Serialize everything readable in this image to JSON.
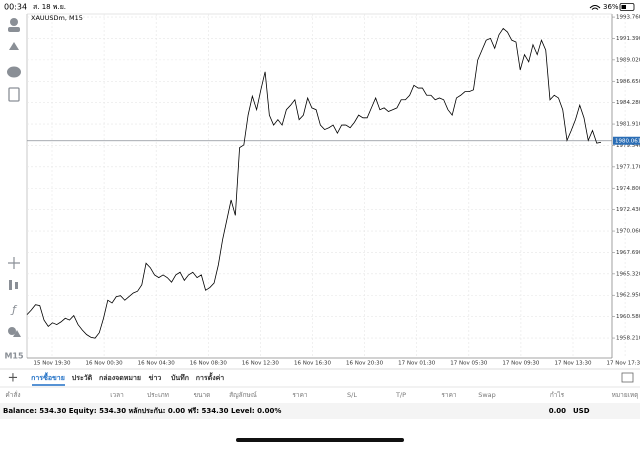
{
  "status_bar": {
    "time": "00:34",
    "date": "ส. 18 พ.ย.",
    "battery": "36%"
  },
  "sidebar": {
    "timeframe": "M15"
  },
  "chart_data": {
    "type": "line",
    "title": "XAUUSDm, M15",
    "color": "#000000",
    "grid": true,
    "values": [
      1960.8,
      1961.3,
      1961.9,
      1961.8,
      1960.2,
      1959.5,
      1959.9,
      1959.7,
      1960.0,
      1960.4,
      1960.2,
      1960.7,
      1959.7,
      1959.1,
      1958.6,
      1958.3,
      1958.2,
      1958.8,
      1960.4,
      1962.4,
      1962.1,
      1962.8,
      1962.9,
      1962.4,
      1962.8,
      1963.2,
      1963.4,
      1964.1,
      1966.5,
      1966.0,
      1965.2,
      1964.9,
      1965.2,
      1964.9,
      1964.4,
      1965.2,
      1965.5,
      1964.6,
      1965.2,
      1965.5,
      1964.9,
      1965.2,
      1963.5,
      1963.8,
      1964.3,
      1966.3,
      1969.1,
      1971.3,
      1973.5,
      1971.8,
      1979.3,
      1979.6,
      1982.9,
      1985.0,
      1983.5,
      1985.7,
      1987.7,
      1982.9,
      1981.8,
      1982.4,
      1981.8,
      1983.5,
      1984.0,
      1984.6,
      1982.4,
      1982.9,
      1984.8,
      1983.7,
      1983.5,
      1981.8,
      1981.3,
      1981.5,
      1981.8,
      1980.9,
      1981.8,
      1981.8,
      1981.5,
      1982.1,
      1982.9,
      1982.6,
      1982.6,
      1983.7,
      1984.8,
      1983.5,
      1983.7,
      1983.3,
      1983.5,
      1983.7,
      1984.6,
      1984.6,
      1985.1,
      1986.2,
      1985.9,
      1985.9,
      1985.1,
      1985.1,
      1984.6,
      1984.8,
      1984.6,
      1983.5,
      1982.9,
      1984.8,
      1985.1,
      1985.5,
      1985.5,
      1985.7,
      1989.0,
      1990.1,
      1991.2,
      1991.4,
      1990.3,
      1991.8,
      1992.5,
      1992.1,
      1991.2,
      1991.0,
      1987.9,
      1989.6,
      1988.8,
      1990.7,
      1989.6,
      1991.2,
      1990.1,
      1984.6,
      1985.1,
      1984.8,
      1983.5,
      1980.1,
      1981.2,
      1982.4,
      1984.0,
      1982.6,
      1980.1,
      1981.2,
      1979.8,
      1979.9
    ],
    "ylim": [
      1956.0,
      1994.1
    ],
    "yticks": [
      {
        "value": 1993.76,
        "label": "1993.760"
      },
      {
        "value": 1991.39,
        "label": "1991.390"
      },
      {
        "value": 1989.02,
        "label": "1989.020"
      },
      {
        "value": 1986.65,
        "label": "1986.650"
      },
      {
        "value": 1984.28,
        "label": "1984.280"
      },
      {
        "value": 1981.91,
        "label": "1981.910"
      },
      {
        "value": 1979.54,
        "label": "1979.540"
      },
      {
        "value": 1977.17,
        "label": "1977.170"
      },
      {
        "value": 1974.8,
        "label": "1974.800"
      },
      {
        "value": 1972.43,
        "label": "1972.430"
      },
      {
        "value": 1970.06,
        "label": "1970.060"
      },
      {
        "value": 1967.69,
        "label": "1967.690"
      },
      {
        "value": 1965.32,
        "label": "1965.320"
      },
      {
        "value": 1962.95,
        "label": "1962.950"
      },
      {
        "value": 1960.58,
        "label": "1960.580"
      },
      {
        "value": 1958.21,
        "label": "1958.210"
      }
    ],
    "current_price": 1980.061,
    "x_labels": [
      "15 Nov 19:30",
      "16 Nov 00:30",
      "16 Nov 04:30",
      "16 Nov 08:30",
      "16 Nov 12:30",
      "16 Nov 16:30",
      "16 Nov 20:30",
      "17 Nov 01:30",
      "17 Nov 05:30",
      "17 Nov 09:30",
      "17 Nov 13:30",
      "17 Nov 17:30"
    ]
  },
  "tabs": [
    "การซื้อขาย",
    "ประวัติ",
    "กล่องจดหมาย",
    "ข่าว",
    "บันทึก",
    "การตั้งค่า"
  ],
  "columns": [
    "คำสั่ง",
    "เวลา",
    "ประเภท",
    "ขนาด",
    "สัญลักษณ์",
    "ราคา",
    "S/L",
    "T/P",
    "ราคา",
    "Swap",
    "กำไร",
    "หมายเหตุ"
  ],
  "summary": "Balance: 534.30 Equity: 534.30 หลักประกัน: 0.00 ฟรี: 534.30 Level: 0.00%",
  "total": {
    "profit": "0.00",
    "currency": "USD"
  }
}
